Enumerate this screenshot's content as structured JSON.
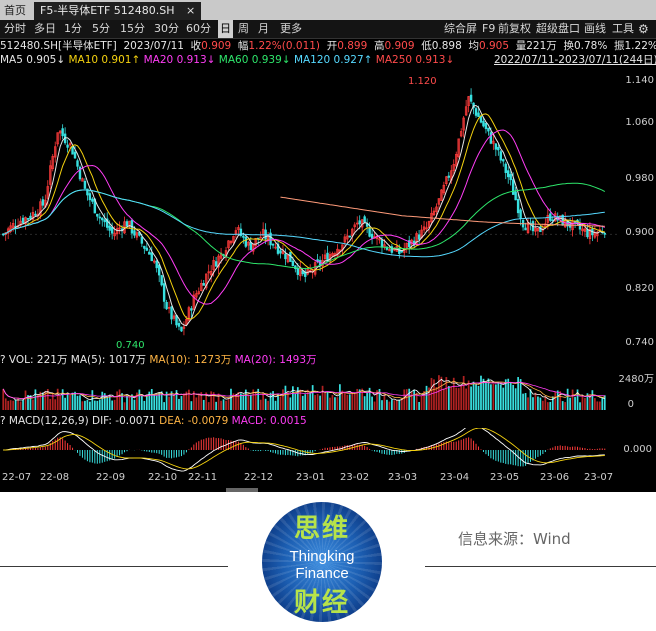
{
  "tabs": {
    "home": "首页",
    "active": "F5-半导体ETF 512480.SH",
    "close": "×",
    "add": "+"
  },
  "toolbar_left": [
    "分时",
    "多日",
    "1分",
    "5分",
    "15分",
    "30分",
    "60分",
    "日",
    "周",
    "月",
    "更多"
  ],
  "toolbar_selected": "日",
  "toolbar_right": [
    "综合屏",
    "F9",
    "前复权",
    "超级盘口",
    "画线",
    "工具"
  ],
  "quote": {
    "name": "512480.SH[半导体ETF]",
    "date": "2023/07/11",
    "close_label": "收",
    "close": "0.909",
    "change_label": "幅",
    "change": "1.22%(0.011)",
    "open_label": "开",
    "open": "0.899",
    "high_label": "高",
    "high": "0.909",
    "low_label": "低",
    "low": "0.898",
    "avg_label": "均",
    "avg": "0.905",
    "volume_label": "量",
    "volume": "221万",
    "turnover_label": "换",
    "turnover": "0.78%",
    "amplitude_label": "振",
    "amplitude": "1.22%",
    "more_label": "摇"
  },
  "ma": {
    "ma5": "MA5 0.905↓",
    "ma10": "MA10 0.901↑",
    "ma20": "MA20 0.913↓",
    "ma60": "MA60 0.939↓",
    "ma120": "MA120 0.927↑",
    "ma250": "MA250 0.913↓",
    "range": "2022/07/11-2023/07/11(244日)"
  },
  "price_axis": [
    "1.140",
    "1.060",
    "0.980",
    "0.900",
    "0.820",
    "0.740"
  ],
  "annot": {
    "high": "1.120",
    "low": "0.740"
  },
  "volume_panel": {
    "title": "VOL: 221万  MA(5): 1017万",
    "ma10": "MA(10): 1273万",
    "ma20": "MA(20): 1493万",
    "axis_top": "2480万",
    "axis_zero": "0"
  },
  "macd_panel": {
    "title": "MACD(12,26,9)  DIF: -0.0071",
    "dea": "DEA: -0.0079",
    "macd": "MACD: 0.0015",
    "axis": "0.000"
  },
  "x_axis": [
    "22-07",
    "22-08",
    "22-09",
    "22-10",
    "22-11",
    "22-12",
    "23-01",
    "23-02",
    "23-03",
    "23-04",
    "23-05",
    "23-06",
    "23-07"
  ],
  "chart_data": {
    "type": "candlestick",
    "title": "512480.SH 半导体ETF",
    "x": [
      "22-07",
      "22-08",
      "22-09",
      "22-10",
      "22-11",
      "22-12",
      "23-01",
      "23-02",
      "23-03",
      "23-04",
      "23-05",
      "23-06",
      "23-07"
    ],
    "close_path": [
      0.9,
      0.92,
      0.93,
      0.95,
      1.07,
      1.04,
      0.97,
      0.93,
      0.9,
      0.92,
      0.89,
      0.86,
      0.78,
      0.74,
      0.8,
      0.84,
      0.87,
      0.91,
      0.88,
      0.9,
      0.88,
      0.86,
      0.83,
      0.85,
      0.87,
      0.89,
      0.92,
      0.9,
      0.88,
      0.87,
      0.89,
      0.91,
      0.96,
      1.02,
      1.12,
      1.08,
      1.04,
      0.99,
      0.92,
      0.9,
      0.93,
      0.92,
      0.91,
      0.9,
      0.909
    ],
    "ma20_path": [
      0.92,
      0.94,
      0.99,
      1.02,
      1.0,
      0.98,
      0.93,
      0.9,
      0.86,
      0.82,
      0.8,
      0.83,
      0.86,
      0.88,
      0.89,
      0.87,
      0.85,
      0.85,
      0.87,
      0.89,
      0.9,
      0.89,
      0.87,
      0.88,
      0.92,
      0.98,
      1.06,
      1.05,
      0.98,
      0.93,
      0.91,
      0.91,
      0.92,
      0.913
    ],
    "ma250_path": [
      0.96,
      0.95,
      0.94,
      0.93,
      0.925,
      0.92,
      0.917,
      0.915,
      0.913
    ],
    "ylim": [
      0.72,
      1.16
    ],
    "volume_range": [
      0,
      2480
    ],
    "macd_range": [
      -0.04,
      0.04
    ]
  },
  "footer": {
    "logo_top": "思维",
    "logo_en1": "Thingking",
    "logo_en2": "Finance",
    "logo_bottom": "财经",
    "source": "信息来源：Wind"
  },
  "colors": {
    "up": "#ff3b3b",
    "down": "#38e0e0",
    "ma5": "#e6e6e6",
    "ma10": "#f5d20f",
    "ma20": "#ff3df5",
    "ma60": "#2ee66b",
    "ma120": "#56d9ff",
    "ma250": "#ff9b7a"
  }
}
